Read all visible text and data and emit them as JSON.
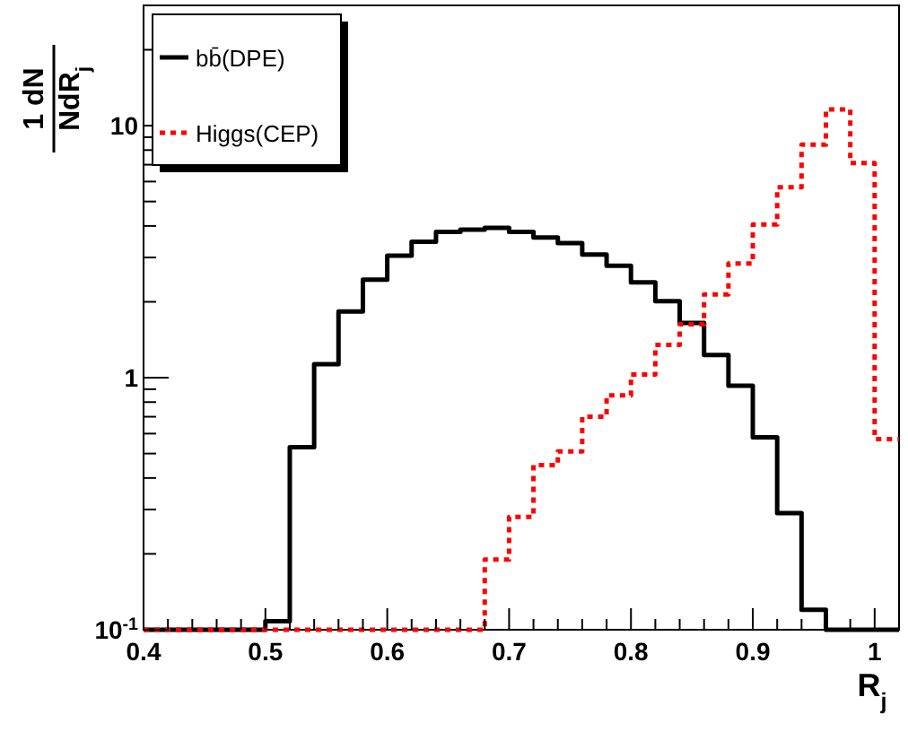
{
  "chart_data": {
    "type": "histogram",
    "xlabel": "R$_{j}$",
    "ylabel": "1 dN\nNdR$_{j}$",
    "bins": [
      0.4,
      0.42,
      0.44,
      0.46,
      0.48,
      0.5,
      0.52,
      0.54,
      0.56,
      0.58,
      0.6,
      0.62,
      0.64,
      0.66,
      0.68,
      0.7,
      0.72,
      0.74,
      0.76,
      0.78,
      0.8,
      0.82,
      0.84,
      0.86,
      0.88,
      0.9,
      0.92,
      0.94,
      0.96,
      0.98,
      1.0,
      1.02
    ],
    "series": [
      {
        "name": "bb̄(DPE)",
        "color": "#000000",
        "line_style": "solid",
        "values": [
          0.1,
          0.1,
          0.1,
          0.1,
          0.1,
          0.108,
          0.53,
          1.13,
          1.83,
          2.45,
          3.05,
          3.46,
          3.79,
          3.87,
          3.93,
          3.79,
          3.6,
          3.42,
          3.08,
          2.78,
          2.39,
          2.01,
          1.65,
          1.23,
          0.93,
          0.58,
          0.29,
          0.12,
          0.1,
          0.1,
          0.1
        ]
      },
      {
        "name": "Higgs(CEP)",
        "color": "#ff0000",
        "line_style": "dotted",
        "values": [
          0.1,
          0.1,
          0.1,
          0.1,
          0.1,
          0.1,
          0.1,
          0.1,
          0.1,
          0.1,
          0.1,
          0.1,
          0.1,
          0.1,
          0.19,
          0.28,
          0.45,
          0.51,
          0.7,
          0.85,
          1.03,
          1.35,
          1.63,
          2.14,
          2.84,
          4.05,
          5.7,
          8.4,
          11.6,
          7.1,
          0.57
        ]
      }
    ],
    "log": "y",
    "xlim": [
      0.4,
      1.02
    ],
    "ylim": [
      0.1,
      30
    ],
    "xticks": [
      0.4,
      {
        "value": 0.42,
        "label": null
      },
      {
        "value": 0.44,
        "label": null
      },
      {
        "value": 0.46,
        "label": null
      },
      {
        "value": 0.48,
        "label": null
      },
      0.5,
      {
        "value": 0.52,
        "label": null
      },
      {
        "value": 0.54,
        "label": null
      },
      {
        "value": 0.56,
        "label": null
      },
      {
        "value": 0.58,
        "label": null
      },
      0.6,
      {
        "value": 0.62,
        "label": null
      },
      {
        "value": 0.64,
        "label": null
      },
      {
        "value": 0.66,
        "label": null
      },
      {
        "value": 0.68,
        "label": null
      },
      0.7,
      {
        "value": 0.72,
        "label": null
      },
      {
        "value": 0.74,
        "label": null
      },
      {
        "value": 0.76,
        "label": null
      },
      {
        "value": 0.78,
        "label": null
      },
      0.8,
      {
        "value": 0.82,
        "label": null
      },
      {
        "value": 0.84,
        "label": null
      },
      {
        "value": 0.86,
        "label": null
      },
      {
        "value": 0.88,
        "label": null
      },
      0.9,
      {
        "value": 0.92,
        "label": null
      },
      {
        "value": 0.94,
        "label": null
      },
      {
        "value": 0.96,
        "label": null
      },
      {
        "value": 0.98,
        "label": null
      },
      1,
      {
        "value": 1.02,
        "label": null
      }
    ],
    "yticks": [
      {
        "value": 0.1,
        "label": "10$^{-1}$"
      },
      {
        "value": 0.2,
        "label": null
      },
      {
        "value": 0.3,
        "label": null
      },
      {
        "value": 0.4,
        "label": null
      },
      {
        "value": 0.5,
        "label": null
      },
      {
        "value": 0.6,
        "label": null
      },
      {
        "value": 0.7,
        "label": null
      },
      {
        "value": 0.8,
        "label": null
      },
      {
        "value": 0.9,
        "label": null
      },
      1,
      {
        "value": 2,
        "label": null
      },
      {
        "value": 3,
        "label": null
      },
      {
        "value": 4,
        "label": null
      },
      {
        "value": 5,
        "label": null
      },
      {
        "value": 6,
        "label": null
      },
      {
        "value": 7,
        "label": null
      },
      {
        "value": 8,
        "label": null
      },
      {
        "value": 9,
        "label": null
      },
      10,
      {
        "value": 20,
        "label": null
      }
    ],
    "grid": false,
    "legend": "top left"
  }
}
